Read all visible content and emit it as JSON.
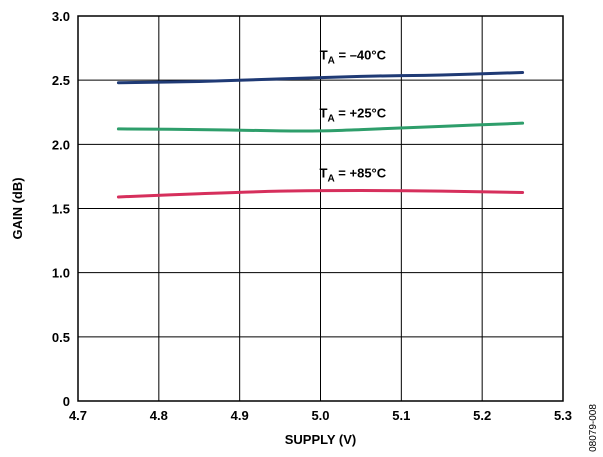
{
  "chart_data": {
    "type": "line",
    "xlabel": "SUPPLY (V)",
    "ylabel": "GAIN (dB)",
    "xlim": [
      4.7,
      5.3
    ],
    "ylim": [
      0,
      3.0
    ],
    "x_ticks": [
      "4.7",
      "4.8",
      "4.9",
      "5.0",
      "5.1",
      "5.2",
      "5.3"
    ],
    "y_ticks": [
      "0",
      "0.5",
      "1.0",
      "1.5",
      "2.0",
      "2.5",
      "3.0"
    ],
    "grid": true,
    "legend": "none",
    "series": [
      {
        "name": "TA = –40°C",
        "label": {
          "main": "T",
          "sub": "A",
          "rest": " = –40°C",
          "anchor": [
            5.04,
            2.66
          ]
        },
        "color": "#1f3a75",
        "x": [
          4.75,
          4.85,
          4.95,
          5.05,
          5.15,
          5.25
        ],
        "y": [
          2.48,
          2.49,
          2.51,
          2.53,
          2.54,
          2.56
        ]
      },
      {
        "name": "TA = +25°C",
        "label": {
          "main": "T",
          "sub": "A",
          "rest": " = +25°C",
          "anchor": [
            5.04,
            2.21
          ]
        },
        "color": "#2e9e6b",
        "x": [
          4.75,
          4.85,
          4.95,
          5.0,
          5.05,
          5.15,
          5.25
        ],
        "y": [
          2.12,
          2.115,
          2.105,
          2.105,
          2.115,
          2.14,
          2.165
        ]
      },
      {
        "name": "TA = +85°C",
        "label": {
          "main": "T",
          "sub": "A",
          "rest": " = +85°C",
          "anchor": [
            5.04,
            1.74
          ]
        },
        "color": "#d62f5c",
        "x": [
          4.75,
          4.85,
          4.95,
          5.05,
          5.15,
          5.25
        ],
        "y": [
          1.59,
          1.615,
          1.635,
          1.64,
          1.635,
          1.625
        ]
      }
    ]
  },
  "figure_id": "08079-008"
}
